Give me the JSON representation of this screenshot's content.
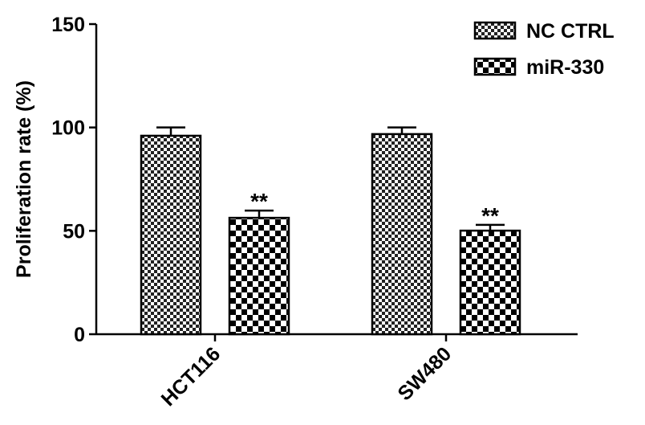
{
  "chart_data": {
    "type": "bar",
    "y_label": "Proliferation rate (%)",
    "categories": [
      "HCT116",
      "SW480"
    ],
    "series": [
      {
        "name": "NC CTRL",
        "color": "#000000",
        "pattern": "fine-checker",
        "values": [
          96,
          96.8
        ],
        "errors": [
          4,
          3.2
        ]
      },
      {
        "name": "miR-330",
        "color": "#000000",
        "pattern": "coarse-checker",
        "values": [
          56.3,
          50.1
        ],
        "errors": [
          3.5,
          2.8
        ],
        "annotations": [
          "**",
          "**"
        ]
      }
    ],
    "ylim": [
      0,
      150
    ],
    "yticks": [
      0,
      50,
      100,
      150
    ],
    "legend": "top-right"
  }
}
